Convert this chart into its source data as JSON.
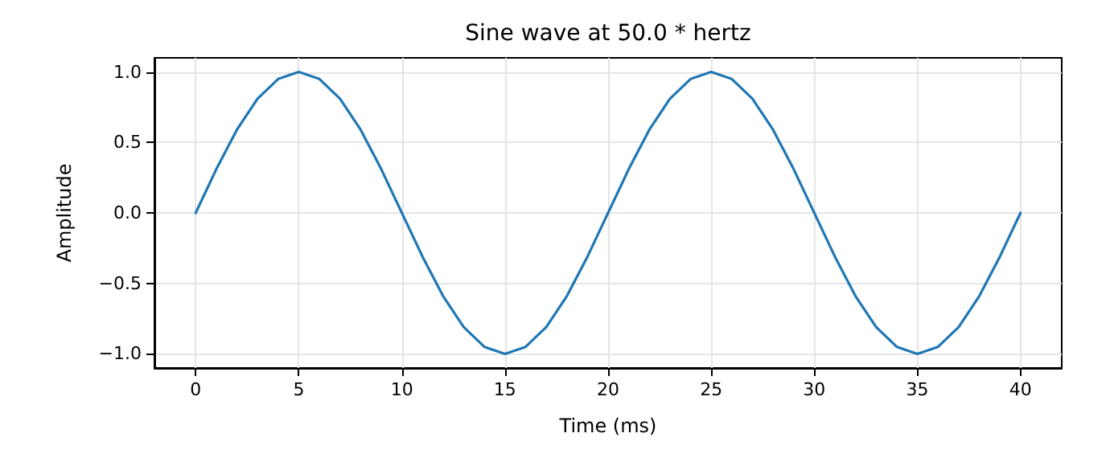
{
  "chart_data": {
    "type": "line",
    "title": "Sine wave at 50.0 * hertz",
    "xlabel": "Time (ms)",
    "ylabel": "Amplitude",
    "x": [
      0,
      1,
      2,
      3,
      4,
      5,
      6,
      7,
      8,
      9,
      10,
      11,
      12,
      13,
      14,
      15,
      16,
      17,
      18,
      19,
      20,
      21,
      22,
      23,
      24,
      25,
      26,
      27,
      28,
      29,
      30,
      31,
      32,
      33,
      34,
      35,
      36,
      37,
      38,
      39,
      40
    ],
    "series": [
      {
        "color": "#1f77b4",
        "values": [
          0,
          0.31,
          0.59,
          0.81,
          0.95,
          1,
          0.95,
          0.81,
          0.59,
          0.31,
          0,
          -0.31,
          -0.59,
          -0.81,
          -0.95,
          -1,
          -0.95,
          -0.81,
          -0.59,
          -0.31,
          0,
          0.31,
          0.59,
          0.81,
          0.95,
          1,
          0.95,
          0.81,
          0.59,
          0.31,
          0,
          -0.31,
          -0.59,
          -0.81,
          -0.95,
          -1,
          -0.95,
          -0.81,
          -0.59,
          -0.31,
          0
        ]
      }
    ],
    "xlim": [
      -2,
      42
    ],
    "ylim": [
      -1.1,
      1.1
    ],
    "xticks": [
      0,
      5,
      10,
      15,
      20,
      25,
      30,
      35,
      40
    ],
    "yticks": [
      {
        "value": -1,
        "label": "−1.0"
      },
      {
        "value": -0.5,
        "label": "−0.5"
      },
      {
        "value": 0,
        "label": "0.0"
      },
      {
        "value": 0.5,
        "label": "0.5"
      },
      {
        "value": 1,
        "label": "1.0"
      }
    ],
    "grid": true,
    "marker": "none",
    "line_style": "solid"
  }
}
